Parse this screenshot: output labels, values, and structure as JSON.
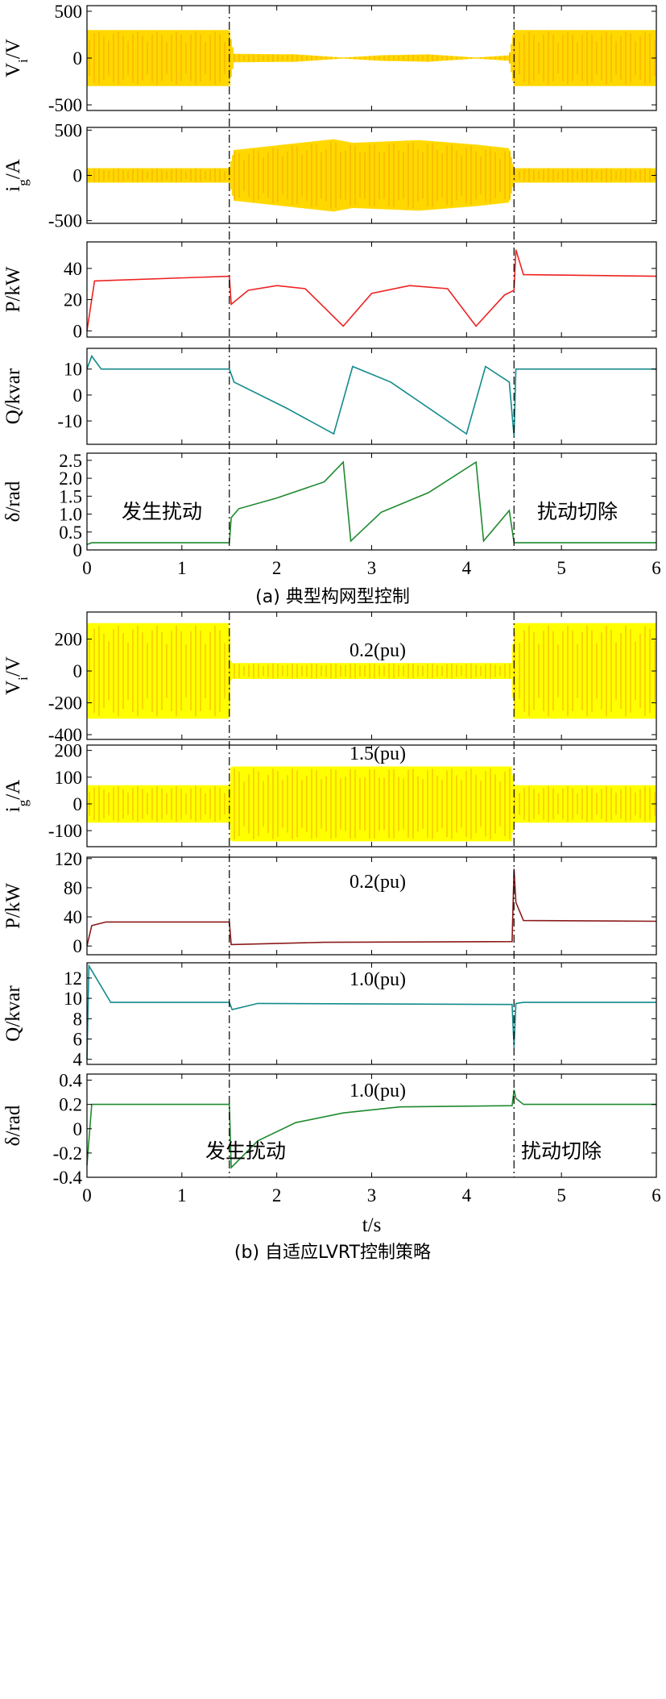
{
  "chart_data": [
    {
      "type": "line",
      "caption": "(a) 典型构网型控制",
      "x_ticks": [
        "0",
        "1",
        "2",
        "3",
        "4",
        "5",
        "6"
      ],
      "xlim": [
        0,
        6
      ],
      "events": [
        {
          "time": 1.5,
          "label": "发生扰动"
        },
        {
          "time": 4.5,
          "label": "扰动切除"
        }
      ],
      "panels": [
        {
          "ylabel": "V_i/V",
          "ylim": [
            -560,
            560
          ],
          "y_ticks": [
            "500",
            "0",
            "-500"
          ],
          "y_tick_values": [
            500,
            0,
            -500
          ],
          "color": "#ffd800",
          "series": [
            {
              "x": [
                0,
                1.5,
                1.55,
                2.2,
                2.7,
                3.1,
                3.6,
                4.1,
                4.45,
                4.5,
                6
              ],
              "y": [
                300,
                300,
                45,
                40,
                5,
                30,
                40,
                5,
                30,
                300,
                300
              ]
            }
          ]
        },
        {
          "ylabel": "i_g/A",
          "ylim": [
            -530,
            530
          ],
          "y_ticks": [
            "500",
            "0",
            "-500"
          ],
          "y_tick_values": [
            500,
            0,
            -500
          ],
          "color": "#ffd800",
          "series": [
            {
              "x": [
                0,
                1.5,
                1.55,
                2.6,
                2.8,
                3.5,
                4.1,
                4.45,
                4.5,
                6
              ],
              "y": [
                80,
                80,
                280,
                400,
                360,
                390,
                340,
                300,
                80,
                80
              ]
            }
          ]
        },
        {
          "ylabel": "P/kW",
          "ylim": [
            -4,
            57
          ],
          "y_ticks": [
            "40",
            "20",
            "0"
          ],
          "y_tick_values": [
            40,
            20,
            0
          ],
          "color": "#ee2222",
          "series": [
            {
              "x": [
                0,
                0.08,
                1.5,
                1.52,
                1.7,
                2.0,
                2.3,
                2.7,
                3.0,
                3.4,
                3.8,
                4.1,
                4.4,
                4.5,
                4.52,
                4.6,
                6
              ],
              "y": [
                0,
                32,
                35,
                17,
                26,
                29,
                27,
                3,
                24,
                29,
                27,
                3,
                23,
                26,
                52,
                36,
                35
              ]
            }
          ]
        },
        {
          "ylabel": "Q/kvar",
          "ylim": [
            -19,
            18
          ],
          "y_ticks": [
            "10",
            "0",
            "-10"
          ],
          "y_tick_values": [
            10,
            0,
            -10
          ],
          "color": "#138a8c",
          "series": [
            {
              "x": [
                0,
                0.05,
                0.15,
                1.5,
                1.55,
                2.1,
                2.6,
                2.8,
                3.2,
                4.0,
                4.2,
                4.45,
                4.5,
                4.52,
                4.6,
                6
              ],
              "y": [
                10,
                15,
                10,
                10,
                5,
                -5,
                -15,
                11,
                5,
                -15,
                11,
                5,
                -16,
                10,
                10,
                10
              ]
            }
          ]
        },
        {
          "ylabel": "δ/rad",
          "ylim": [
            0,
            2.7
          ],
          "y_ticks": [
            "2.5",
            "2.0",
            "1.5",
            "1.0",
            "0.5",
            "0"
          ],
          "y_tick_values": [
            2.5,
            2.0,
            1.5,
            1.0,
            0.5,
            0
          ],
          "color": "#1e8a2e",
          "series": [
            {
              "x": [
                0,
                0.05,
                1.5,
                1.52,
                1.6,
                2.0,
                2.5,
                2.7,
                2.78,
                3.1,
                3.6,
                4.1,
                4.18,
                4.45,
                4.5,
                4.52,
                6
              ],
              "y": [
                0.15,
                0.2,
                0.2,
                0.9,
                1.15,
                1.45,
                1.9,
                2.45,
                0.25,
                1.05,
                1.6,
                2.45,
                0.25,
                1.1,
                0.2,
                0.2,
                0.2
              ]
            }
          ]
        }
      ],
      "annotations": []
    },
    {
      "type": "line",
      "caption": "(b) 自适应LVRT控制策略",
      "x_ticks": [
        "0",
        "1",
        "2",
        "3",
        "4",
        "5",
        "6"
      ],
      "xlabel": "t/s",
      "xlim": [
        0,
        6
      ],
      "events": [
        {
          "time": 1.5,
          "label": "发生扰动"
        },
        {
          "time": 4.5,
          "label": "扰动切除"
        }
      ],
      "panels": [
        {
          "ylabel": "V_i/V",
          "ylim": [
            -430,
            370
          ],
          "y_ticks": [
            "200",
            "0",
            "-200",
            "-400"
          ],
          "y_tick_values": [
            200,
            0,
            -200,
            -400
          ],
          "color": "#ffff00",
          "series": [
            {
              "x": [
                0,
                1.5,
                1.52,
                4.48,
                4.5,
                6
              ],
              "y": [
                300,
                300,
                50,
                50,
                300,
                300
              ]
            }
          ]
        },
        {
          "ylabel": "i_g/A",
          "ylim": [
            -160,
            220
          ],
          "y_ticks": [
            "200",
            "100",
            "0",
            "-100"
          ],
          "y_tick_values": [
            200,
            100,
            0,
            -100
          ],
          "color": "#ffff00",
          "series": [
            {
              "x": [
                0,
                1.5,
                1.52,
                4.48,
                4.5,
                6
              ],
              "y": [
                70,
                70,
                140,
                140,
                70,
                70
              ]
            }
          ]
        },
        {
          "ylabel": "P/kW",
          "ylim": [
            -12,
            122
          ],
          "y_ticks": [
            "120",
            "80",
            "40",
            "0"
          ],
          "y_tick_values": [
            120,
            80,
            40,
            0
          ],
          "color": "#8b1a1a",
          "series": [
            {
              "x": [
                0,
                0.05,
                0.2,
                1.5,
                1.52,
                2.5,
                4.48,
                4.5,
                4.52,
                4.6,
                6
              ],
              "y": [
                0,
                28,
                33,
                33,
                2,
                5,
                6,
                106,
                60,
                35,
                34
              ]
            }
          ]
        },
        {
          "ylabel": "Q/kvar",
          "ylim": [
            3.5,
            13.5
          ],
          "y_ticks": [
            "12",
            "10",
            "8",
            "6",
            "4"
          ],
          "y_tick_values": [
            12,
            10,
            8,
            6,
            4
          ],
          "color": "#138a8c",
          "series": [
            {
              "x": [
                0,
                0.02,
                0.25,
                1.5,
                1.53,
                1.8,
                4.48,
                4.5,
                4.52,
                4.6,
                6
              ],
              "y": [
                4,
                13.2,
                9.6,
                9.6,
                8.9,
                9.5,
                9.4,
                5.2,
                9.5,
                9.6,
                9.6
              ]
            }
          ]
        },
        {
          "ylabel": "δ/rad",
          "ylim": [
            -0.4,
            0.45
          ],
          "y_ticks": [
            "0.4",
            "0.2",
            "0",
            "-0.2",
            "-0.4"
          ],
          "y_tick_values": [
            0.4,
            0.2,
            0,
            -0.2,
            -0.4
          ],
          "color": "#1e8a2e",
          "series": [
            {
              "x": [
                0,
                0.05,
                1.5,
                1.52,
                1.8,
                2.2,
                2.7,
                3.3,
                4.48,
                4.5,
                4.52,
                4.6,
                6
              ],
              "y": [
                -0.3,
                0.2,
                0.2,
                -0.32,
                -0.1,
                0.05,
                0.13,
                0.18,
                0.19,
                0.32,
                0.25,
                0.2,
                0.2
              ]
            }
          ]
        }
      ],
      "annotations": [
        {
          "panel": 0,
          "text": "0.2(pu)"
        },
        {
          "panel": 1,
          "text": "1.5(pu)"
        },
        {
          "panel": 2,
          "text": "0.2(pu)"
        },
        {
          "panel": 3,
          "text": "1.0(pu)"
        },
        {
          "panel": 4,
          "text": "1.0(pu)"
        }
      ]
    }
  ]
}
